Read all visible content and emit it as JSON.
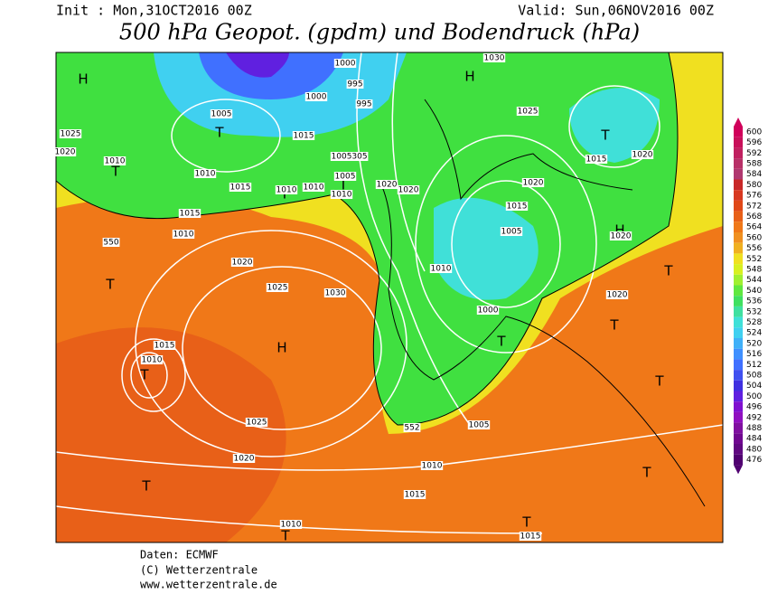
{
  "header": {
    "init": "Init : Mon,31OCT2016 00Z",
    "valid": "Valid: Sun,06NOV2016 00Z",
    "title": "500 hPa Geopot. (gpdm) und Bodendruck (hPa)"
  },
  "colorbar": {
    "ticks": [
      "600",
      "596",
      "592",
      "588",
      "584",
      "580",
      "576",
      "572",
      "568",
      "564",
      "560",
      "556",
      "552",
      "548",
      "544",
      "540",
      "536",
      "532",
      "528",
      "524",
      "520",
      "516",
      "512",
      "508",
      "504",
      "500",
      "496",
      "492",
      "488",
      "484",
      "480",
      "476"
    ],
    "colors": [
      "#d0005a",
      "#c8105a",
      "#c02060",
      "#b83068",
      "#b03870",
      "#c82828",
      "#d83820",
      "#e04818",
      "#e86018",
      "#f07818",
      "#f09020",
      "#f0b020",
      "#f0e020",
      "#d8f020",
      "#a0f030",
      "#60e840",
      "#40e060",
      "#40e0a0",
      "#40e0d8",
      "#40d0f0",
      "#40b0f8",
      "#4090ff",
      "#4070ff",
      "#4050f0",
      "#4030e0",
      "#6020e0",
      "#8010d0",
      "#9010c0",
      "#8010a0",
      "#700890",
      "#600880",
      "#500070"
    ]
  },
  "map": {
    "centers": [
      "H",
      "H",
      "H",
      "H",
      "T",
      "T",
      "T",
      "T",
      "T",
      "T",
      "T",
      "T",
      "T",
      "T",
      "T",
      "T",
      "T",
      "T",
      "T"
    ],
    "isobars": [
      "1030",
      "1000",
      "995",
      "1000",
      "995",
      "1005",
      "1025",
      "1025",
      "1015",
      "1020",
      "1010",
      "1005",
      "305",
      "1005",
      "1010",
      "1015",
      "1010",
      "1010",
      "1010",
      "1020",
      "1020",
      "1020",
      "1015",
      "1020",
      "1015",
      "1015",
      "1005",
      "1010",
      "550",
      "1020",
      "1020",
      "1010",
      "1025",
      "1030",
      "1020",
      "1000",
      "1015",
      "1010",
      "1025",
      "1005",
      "552",
      "1020",
      "1010",
      "1015",
      "1010",
      "1015"
    ]
  },
  "footer": {
    "source": "Daten: ECMWF",
    "copyright": "(C) Wetterzentrale",
    "url": "www.wetterzentrale.de"
  }
}
